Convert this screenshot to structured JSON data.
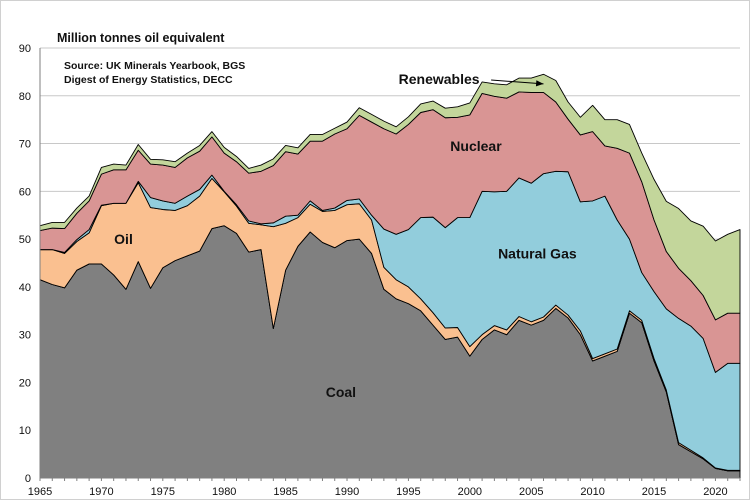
{
  "chart_data": {
    "type": "area",
    "stacked": true,
    "unit_label": "Million tonnes oil equivalent",
    "source_lines": [
      "Source: UK Minerals Yearbook, BGS",
      "Digest of  Energy Statistics, DECC"
    ],
    "xlim": [
      1965,
      2022
    ],
    "ylim": [
      0,
      90
    ],
    "x_ticks": [
      1965,
      1970,
      1975,
      1980,
      1985,
      1990,
      1995,
      2000,
      2005,
      2010,
      2015,
      2020
    ],
    "y_ticks": [
      0,
      10,
      20,
      30,
      40,
      50,
      60,
      70,
      80,
      90
    ],
    "grid": "horizontal",
    "x": [
      1965,
      1966,
      1967,
      1968,
      1969,
      1970,
      1971,
      1972,
      1973,
      1974,
      1975,
      1976,
      1977,
      1978,
      1979,
      1980,
      1981,
      1982,
      1983,
      1984,
      1985,
      1986,
      1987,
      1988,
      1989,
      1990,
      1991,
      1992,
      1993,
      1994,
      1995,
      1996,
      1997,
      1998,
      1999,
      2000,
      2001,
      2002,
      2003,
      2004,
      2005,
      2006,
      2007,
      2008,
      2009,
      2010,
      2011,
      2012,
      2013,
      2014,
      2015,
      2016,
      2017,
      2018,
      2019,
      2020,
      2021,
      2022
    ],
    "series": [
      {
        "name": "Coal",
        "color": "#808080",
        "values": [
          41.5,
          40.5,
          39.8,
          43.5,
          44.8,
          44.8,
          42.5,
          39.5,
          45.3,
          39.7,
          44,
          45.5,
          46.5,
          47.5,
          52.2,
          52.8,
          51.2,
          47.3,
          47.8,
          31.3,
          43.5,
          48.5,
          51.5,
          49.3,
          48.2,
          49.7,
          50.0,
          47.0,
          39.5,
          37.5,
          36.5,
          35.0,
          32.0,
          29.0,
          29.5,
          25.5,
          29.0,
          31.0,
          30.0,
          33.0,
          32.0,
          33.0,
          35.5,
          33.5,
          30.0,
          24.5,
          25.5,
          26.5,
          34.5,
          32.5,
          24.5,
          18.0,
          7.0,
          5.5,
          4.0,
          2.0,
          1.5,
          1.5
        ]
      },
      {
        "name": "",
        "color": "#f0a35a",
        "values": [
          0,
          0,
          0,
          0,
          0,
          0,
          0,
          0,
          0,
          0,
          0,
          0,
          0,
          0,
          0,
          0,
          0,
          0,
          0,
          0,
          0,
          0,
          0,
          0,
          0,
          0,
          0,
          0,
          0,
          0,
          0,
          0,
          0,
          0,
          0,
          0,
          0,
          0,
          0,
          0,
          0,
          0,
          0,
          0,
          0,
          0,
          0,
          0,
          0,
          0,
          0,
          0,
          0,
          0,
          0,
          0,
          0,
          0
        ]
      },
      {
        "name": "Oil",
        "color": "#fac090",
        "values": [
          6.3,
          7.3,
          7.2,
          6.0,
          6.5,
          12.2,
          15.0,
          18.0,
          16.5,
          16.9,
          12.2,
          10.5,
          10.5,
          11.5,
          10.5,
          7.1,
          5.7,
          6.0,
          5.2,
          21.3,
          9.8,
          6.0,
          5.8,
          6.5,
          7.8,
          7.5,
          7.4,
          7.0,
          4.6,
          4.0,
          3.5,
          2.5,
          2.6,
          2.4,
          2.0,
          2.0,
          1.0,
          0.9,
          1.0,
          0.8,
          0.7,
          0.7,
          0.7,
          0.6,
          0.8,
          0.5,
          0.5,
          0.5,
          0.5,
          0.5,
          0.5,
          0.4,
          0.4,
          0.3,
          0.2,
          0.1,
          0.1,
          0.1
        ]
      },
      {
        "name": "Natural Gas",
        "color": "#92cddc",
        "values": [
          0,
          0,
          0.2,
          0.4,
          0.7,
          0.1,
          0,
          0,
          0.3,
          2.1,
          1.8,
          1.5,
          2.0,
          1.4,
          0.7,
          0.1,
          0.3,
          0.5,
          0.2,
          0.8,
          1.5,
          0.5,
          0.7,
          0.2,
          0.5,
          0.9,
          1.0,
          1.0,
          8.0,
          9.5,
          12.0,
          17.0,
          20.0,
          21.0,
          23.0,
          27.0,
          30.0,
          28.0,
          29.0,
          29.0,
          29.0,
          30.0,
          28.0,
          30.0,
          27.0,
          33.0,
          33.0,
          27.0,
          15.0,
          10.0,
          14.0,
          17.0,
          26.0,
          26.0,
          25.0,
          20.0,
          22.4,
          22.4
        ]
      },
      {
        "name": "Nuclear",
        "color": "#d99594",
        "values": [
          4.0,
          4.5,
          5.0,
          5.5,
          6.0,
          6.5,
          7.0,
          7.0,
          6.5,
          7.0,
          7.5,
          7.5,
          8.0,
          8.0,
          8.0,
          8.0,
          9.0,
          10.0,
          11.0,
          12.0,
          13.5,
          12.8,
          12.5,
          14.5,
          15.5,
          15.0,
          17.5,
          19.5,
          21.0,
          21.0,
          22.0,
          22.0,
          22.5,
          23.0,
          21.0,
          21.5,
          20.5,
          20.0,
          19.5,
          18.0,
          19.0,
          17.0,
          14.5,
          11.0,
          14.0,
          14.5,
          10.5,
          15.0,
          18.0,
          19.0,
          15.0,
          12.0,
          10.5,
          9.5,
          9.0,
          11.0,
          10.5,
          10.5
        ]
      },
      {
        "name": "Renewables",
        "color": "#c3d69b",
        "values": [
          1.0,
          1.2,
          1.3,
          1.1,
          1.0,
          1.4,
          1.2,
          1.0,
          1.2,
          1.0,
          1.1,
          1.2,
          1.0,
          1.2,
          1.1,
          1.2,
          1.1,
          1.0,
          1.3,
          1.4,
          1.3,
          1.3,
          1.4,
          1.4,
          1.2,
          1.4,
          1.6,
          1.6,
          1.6,
          1.5,
          1.6,
          1.8,
          1.8,
          2.0,
          2.2,
          2.5,
          2.4,
          2.6,
          2.8,
          2.9,
          3.0,
          3.8,
          4.5,
          3.6,
          3.7,
          5.5,
          5.5,
          6.0,
          6.0,
          6.0,
          8.5,
          10.5,
          12.5,
          12.5,
          14.5,
          16.5,
          16.5,
          17.5
        ]
      }
    ],
    "annotations": [
      {
        "text": "Coal",
        "x": 1989.5,
        "y": 18
      },
      {
        "text": "Oil",
        "x": 1971.8,
        "y": 50
      },
      {
        "text": "Natural Gas",
        "x": 2005.5,
        "y": 47
      },
      {
        "text": "Nuclear",
        "x": 2000.5,
        "y": 69.5
      },
      {
        "text": "Renewables",
        "x": 1997.5,
        "y": 83.5,
        "arrow_to": [
          2006,
          82.5
        ]
      }
    ]
  }
}
